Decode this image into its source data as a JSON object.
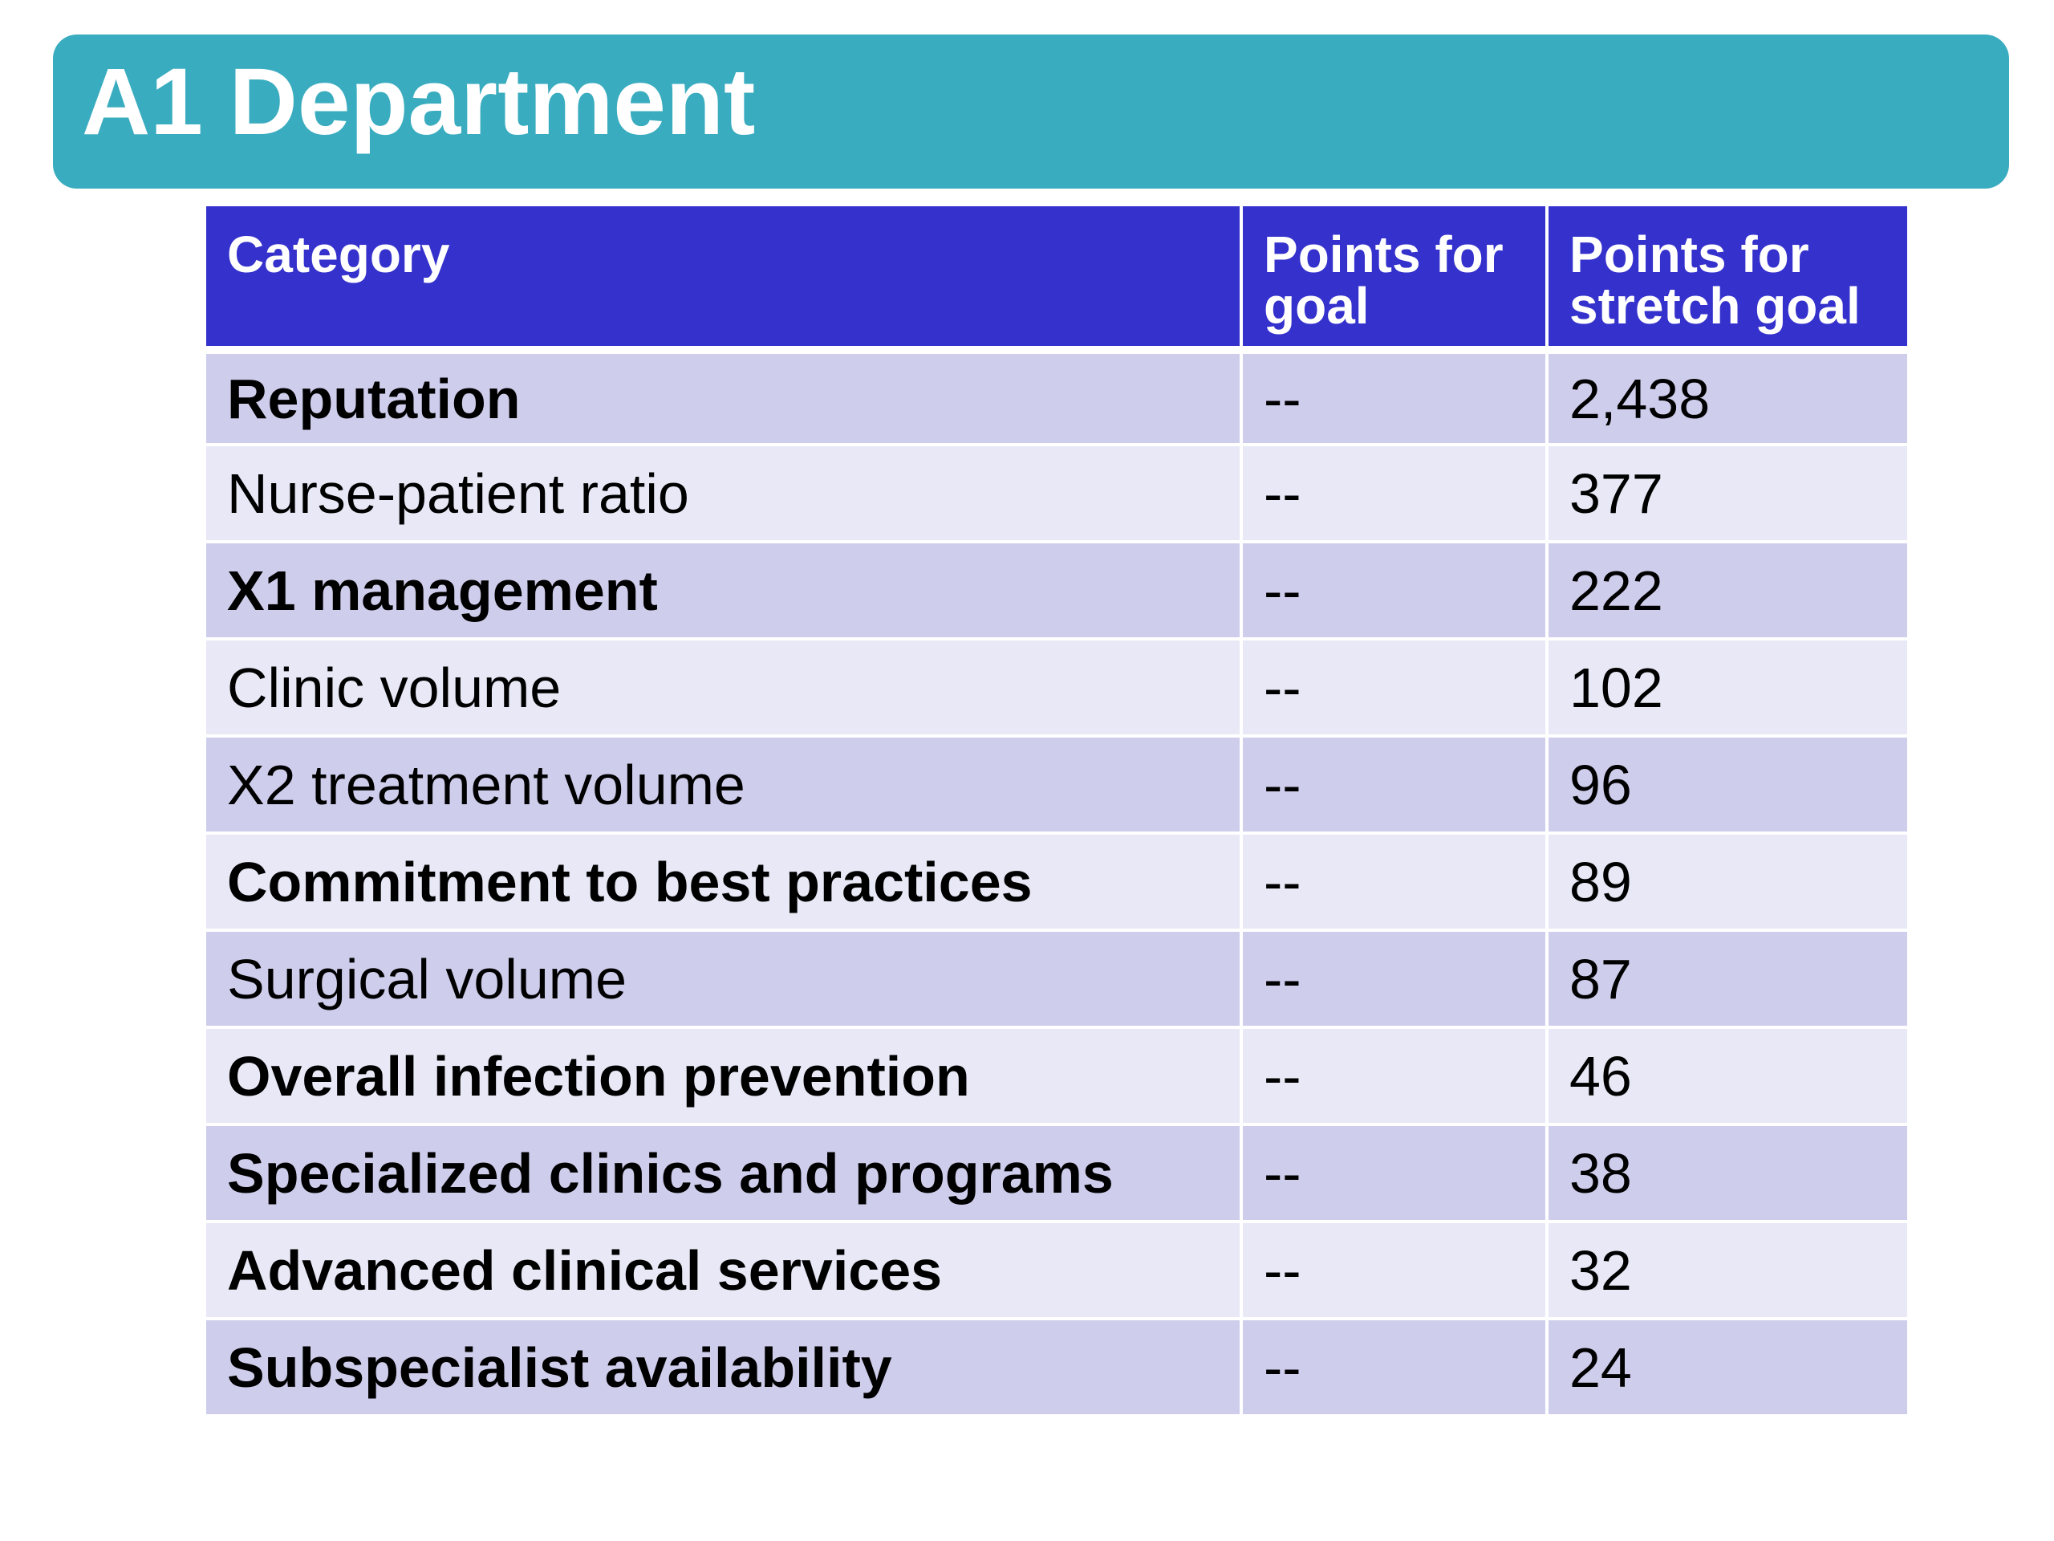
{
  "title": "A1 Department",
  "table": {
    "headers": {
      "category": "Category",
      "goal_line1": "Points for",
      "goal_line2": "goal",
      "stretch_line1": "Points for",
      "stretch_line2": "stretch goal"
    },
    "rows": [
      {
        "category": "Reputation",
        "bold": true,
        "goal": "--",
        "stretch": "2,438"
      },
      {
        "category": "Nurse-patient ratio",
        "bold": false,
        "goal": "--",
        "stretch": "377"
      },
      {
        "category": "X1 management",
        "bold": true,
        "goal": "--",
        "stretch": "222"
      },
      {
        "category": "Clinic volume",
        "bold": false,
        "goal": "--",
        "stretch": "102"
      },
      {
        "category": "X2 treatment volume",
        "bold": false,
        "goal": "--",
        "stretch": "96"
      },
      {
        "category": "Commitment to best practices",
        "bold": true,
        "goal": "--",
        "stretch": "89"
      },
      {
        "category": "Surgical volume",
        "bold": false,
        "goal": "--",
        "stretch": "87"
      },
      {
        "category": "Overall infection prevention",
        "bold": true,
        "goal": "--",
        "stretch": "46"
      },
      {
        "category": "Specialized clinics and programs",
        "bold": true,
        "goal": "--",
        "stretch": "38"
      },
      {
        "category": "Advanced clinical services",
        "bold": true,
        "goal": "--",
        "stretch": "32"
      },
      {
        "category": "Subspecialist availability",
        "bold": true,
        "goal": "--",
        "stretch": "24"
      }
    ]
  },
  "colors": {
    "banner": "#3aacbf",
    "header": "#3431cc",
    "row_dark": "#cecdec",
    "row_light": "#e8e8f6"
  }
}
